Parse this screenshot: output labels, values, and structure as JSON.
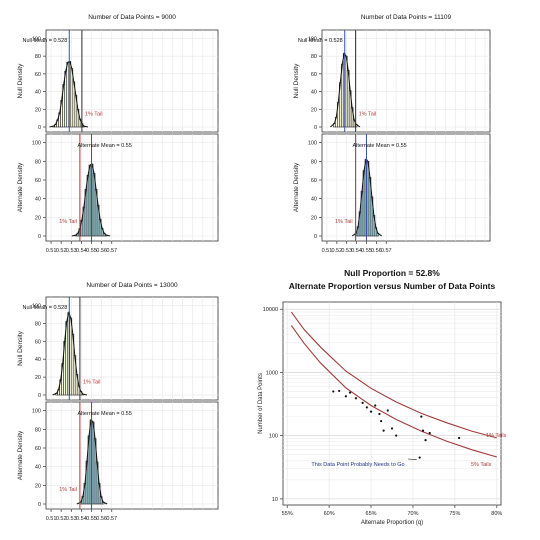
{
  "chart_data": [
    {
      "type": "histogram-pair",
      "title": "Number of Data Points = 9000",
      "null_panel": {
        "ylabel": "Null Density",
        "yticks": [
          0,
          20,
          40,
          60,
          80,
          100
        ],
        "ylim": [
          0,
          105
        ],
        "mean": 0.528,
        "mean_label": "Null Mean = 0.528",
        "tail_x": 0.5405,
        "tail_label": "1% Tail",
        "bin_centers": [
          0.5125,
          0.5145,
          0.5165,
          0.5185,
          0.5205,
          0.5225,
          0.5245,
          0.5265,
          0.5285,
          0.5305,
          0.5325,
          0.5345,
          0.5365,
          0.5385,
          0.5405,
          0.5425
        ],
        "densities": [
          1,
          3,
          8,
          16,
          30,
          48,
          63,
          73,
          74,
          66,
          51,
          36,
          20,
          9,
          4,
          1
        ],
        "fill": "#fbfbdf"
      },
      "alt_panel": {
        "ylabel": "Alternate Density",
        "yticks": [
          0,
          20,
          40,
          60,
          80,
          100
        ],
        "ylim": [
          0,
          105
        ],
        "mean": 0.55,
        "mean_label": "Alternate Mean = 0.55",
        "tail_x": 0.5385,
        "tail_label": "1% Tail",
        "bin_centers": [
          0.5345,
          0.5365,
          0.5385,
          0.5405,
          0.5425,
          0.5445,
          0.5465,
          0.5485,
          0.5505,
          0.5525,
          0.5545,
          0.5565,
          0.5585,
          0.5605,
          0.5625,
          0.5645
        ],
        "densities": [
          1,
          3,
          8,
          17,
          31,
          50,
          65,
          76,
          77,
          67,
          50,
          33,
          18,
          8,
          3,
          1
        ],
        "fill": "#a8dde7"
      },
      "xlim": [
        0.505,
        0.675
      ],
      "xticks": [
        "0.51",
        "0.52",
        "0.53",
        "0.54",
        "0.55",
        "0.56",
        "0.57"
      ]
    },
    {
      "type": "histogram-pair",
      "title": "Number of Data Points = 11109",
      "null_panel": {
        "ylabel": "Null Density",
        "yticks": [
          0,
          20,
          40,
          60,
          80,
          100
        ],
        "ylim": [
          0,
          105
        ],
        "mean": 0.528,
        "mean_label": "Null Mean = 0.528",
        "tail_x": 0.539,
        "tail_label": "1% Tail",
        "bin_centers": [
          0.5175,
          0.5195,
          0.5215,
          0.5235,
          0.5255,
          0.5275,
          0.5295,
          0.5315,
          0.5335,
          0.5355,
          0.5375,
          0.5395
        ],
        "densities": [
          4,
          11,
          28,
          50,
          71,
          83,
          80,
          64,
          41,
          22,
          8,
          3
        ],
        "fill": "#fbfbdf"
      },
      "alt_panel": {
        "ylabel": "Alternate Density",
        "yticks": [
          0,
          20,
          40,
          60,
          80,
          100
        ],
        "ylim": [
          0,
          105
        ],
        "mean": 0.55,
        "mean_label": "Alternate Mean = 0.55",
        "tail_x": 0.539,
        "tail_label": "1% Tail",
        "bin_centers": [
          0.5395,
          0.5415,
          0.5435,
          0.5455,
          0.5475,
          0.5495,
          0.5515,
          0.5535,
          0.5555,
          0.5575,
          0.5595,
          0.5615
        ],
        "densities": [
          3,
          10,
          26,
          48,
          70,
          82,
          80,
          63,
          42,
          22,
          9,
          3
        ],
        "fill": "#a8dde7"
      },
      "xlim": [
        0.505,
        0.675
      ],
      "xticks": [
        "0.51",
        "0.52",
        "0.53",
        "0.54",
        "0.55",
        "0.56",
        "0.57"
      ]
    },
    {
      "type": "histogram-pair",
      "title": "Number of Data Points = 13000",
      "null_panel": {
        "ylabel": "Null Density",
        "yticks": [
          0,
          20,
          40,
          60,
          80,
          100
        ],
        "ylim": [
          0,
          105
        ],
        "mean": 0.528,
        "mean_label": "Null Mean = 0.528",
        "tail_x": 0.5385,
        "tail_label": "1% Tail",
        "bin_centers": [
          0.5155,
          0.5175,
          0.5195,
          0.5215,
          0.5235,
          0.5255,
          0.5275,
          0.5295,
          0.5315,
          0.5335,
          0.5355,
          0.5375,
          0.5395,
          0.5415
        ],
        "densities": [
          2,
          6,
          17,
          35,
          60,
          82,
          92,
          86,
          68,
          44,
          23,
          10,
          4,
          1
        ],
        "fill": "#fbfbdf"
      },
      "alt_panel": {
        "ylabel": "Alternate Density",
        "yticks": [
          0,
          20,
          40,
          60,
          80,
          100
        ],
        "ylim": [
          0,
          105
        ],
        "mean": 0.55,
        "mean_label": "Alternate Mean = 0.55",
        "tail_x": 0.5385,
        "tail_label": "1% Tail",
        "bin_centers": [
          0.5395,
          0.5415,
          0.5435,
          0.5455,
          0.5475,
          0.5495,
          0.5515,
          0.5535,
          0.5555,
          0.5575,
          0.5595,
          0.5615
        ],
        "densities": [
          2,
          8,
          22,
          46,
          73,
          90,
          88,
          70,
          45,
          22,
          8,
          2
        ],
        "fill": "#a8dde7"
      },
      "xlim": [
        0.505,
        0.675
      ],
      "xticks": [
        "0.51",
        "0.52",
        "0.53",
        "0.54",
        "0.55",
        "0.56",
        "0.57"
      ]
    },
    {
      "type": "scatter",
      "title": "Null Proportion = 52.8%",
      "subtitle": "Alternate Proportion versus Number of Data Points",
      "xlabel": "Alternate Proportion (q)",
      "ylabel": "Number of Data Points",
      "xlim": [
        0.545,
        0.805
      ],
      "xticks": [
        0.55,
        0.6,
        0.65,
        0.7,
        0.75,
        0.8
      ],
      "xtick_labels": [
        "55%",
        "60%",
        "65%",
        "70%",
        "75%",
        "80%"
      ],
      "ylog": true,
      "ylim": [
        8,
        13000
      ],
      "yticks": [
        10,
        100,
        1000,
        10000
      ],
      "ytick_labels": [
        "10",
        "100",
        "1000",
        "10000"
      ],
      "grid": true,
      "curves": [
        {
          "name": "1% Tails",
          "color": "#a33a3a",
          "x": [
            0.555,
            0.57,
            0.59,
            0.62,
            0.65,
            0.68,
            0.71,
            0.74,
            0.77,
            0.8
          ],
          "y": [
            9000,
            4800,
            2500,
            1050,
            560,
            340,
            225,
            160,
            118,
            92
          ]
        },
        {
          "name": "5% Tails",
          "color": "#a33a3a",
          "x": [
            0.555,
            0.57,
            0.59,
            0.62,
            0.65,
            0.68,
            0.71,
            0.74,
            0.77,
            0.8
          ],
          "y": [
            5500,
            2900,
            1400,
            570,
            300,
            180,
            118,
            82,
            60,
            46
          ]
        }
      ],
      "points": {
        "x": [
          0.605,
          0.612,
          0.62,
          0.625,
          0.632,
          0.64,
          0.645,
          0.65,
          0.655,
          0.66,
          0.662,
          0.665,
          0.67,
          0.675,
          0.68,
          0.71,
          0.712,
          0.715,
          0.72,
          0.755
        ],
        "y": [
          500,
          510,
          420,
          480,
          390,
          330,
          280,
          240,
          300,
          220,
          170,
          120,
          250,
          130,
          100,
          200,
          120,
          85,
          110,
          92
        ]
      },
      "outlier": {
        "x": 0.708,
        "y": 45
      },
      "annotation": "This Data Point Probably Needs to Go",
      "curve_labels": [
        "1% Tails",
        "5% Tails"
      ]
    }
  ]
}
